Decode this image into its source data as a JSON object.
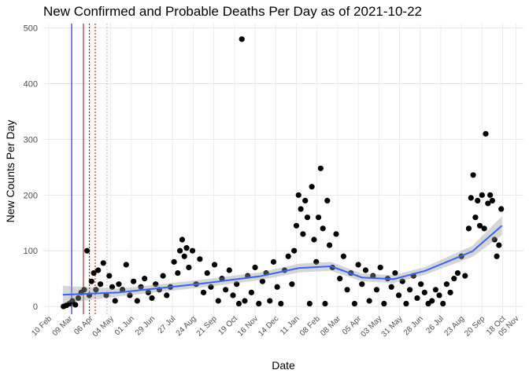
{
  "chart_data": {
    "type": "scatter",
    "title": "New Confirmed and Probable Deaths Per Day as of 2021-10-22",
    "x_label": "Date",
    "y_label": "New Counts Per Day",
    "color": "#000000",
    "grid": true,
    "xlim": [
      0,
      640
    ],
    "ylim": [
      -14,
      508
    ],
    "yticks": [
      0,
      100,
      200,
      300,
      400,
      500
    ],
    "xticks": [
      {
        "value": 0,
        "label": "10 Feb"
      },
      {
        "value": 28,
        "label": "09 Mar"
      },
      {
        "value": 56,
        "label": "06 Apr"
      },
      {
        "value": 84,
        "label": "04 May"
      },
      {
        "value": 112,
        "label": "01 Jun"
      },
      {
        "value": 140,
        "label": "29 Jun"
      },
      {
        "value": 168,
        "label": "27 Jul"
      },
      {
        "value": 196,
        "label": "24 Aug"
      },
      {
        "value": 224,
        "label": "21 Sep"
      },
      {
        "value": 252,
        "label": "19 Oct"
      },
      {
        "value": 280,
        "label": "16 Nov"
      },
      {
        "value": 308,
        "label": "14 Dec"
      },
      {
        "value": 336,
        "label": "11 Jan"
      },
      {
        "value": 364,
        "label": "08 Feb"
      },
      {
        "value": 392,
        "label": "08 Mar"
      },
      {
        "value": 420,
        "label": "05 Apr"
      },
      {
        "value": 448,
        "label": "03 May"
      },
      {
        "value": 476,
        "label": "31 May"
      },
      {
        "value": 504,
        "label": "28 Jun"
      },
      {
        "value": 532,
        "label": "26 Jul"
      },
      {
        "value": 560,
        "label": "23 Aug"
      },
      {
        "value": 588,
        "label": "20 Sep"
      },
      {
        "value": 616,
        "label": "18 Oct"
      },
      {
        "value": 634,
        "label": "05 Nov"
      }
    ],
    "vlines": [
      {
        "x": 31,
        "color": "#0000cc",
        "style": "solid"
      },
      {
        "x": 47,
        "color": "#aa0000",
        "style": "solid"
      },
      {
        "x": 55,
        "color": "#cc0000",
        "style": "dotted"
      },
      {
        "x": 63,
        "color": "#cc0000",
        "style": "dotted"
      },
      {
        "x": 79,
        "color": "#f4a0a0",
        "style": "dotted"
      }
    ],
    "x": [
      20,
      24,
      28,
      32,
      36,
      40,
      44,
      48,
      52,
      55,
      58,
      61,
      64,
      67,
      70,
      74,
      78,
      82,
      86,
      90,
      95,
      100,
      105,
      110,
      115,
      120,
      125,
      130,
      135,
      140,
      145,
      150,
      155,
      160,
      165,
      170,
      175,
      178,
      181,
      184,
      187,
      190,
      195,
      200,
      205,
      210,
      215,
      220,
      225,
      230,
      235,
      240,
      245,
      250,
      255,
      258,
      262,
      266,
      270,
      275,
      280,
      285,
      290,
      295,
      300,
      305,
      310,
      315,
      320,
      325,
      330,
      333,
      336,
      339,
      342,
      345,
      348,
      351,
      354,
      357,
      360,
      363,
      366,
      369,
      372,
      375,
      378,
      381,
      385,
      390,
      395,
      400,
      405,
      410,
      415,
      420,
      425,
      430,
      435,
      440,
      445,
      450,
      455,
      460,
      465,
      470,
      475,
      480,
      485,
      490,
      495,
      500,
      505,
      510,
      515,
      520,
      525,
      530,
      535,
      540,
      545,
      550,
      555,
      560,
      565,
      570,
      573,
      576,
      579,
      582,
      585,
      588,
      591,
      593,
      596,
      599,
      602,
      605,
      608,
      611,
      614
    ],
    "values": [
      0,
      2,
      5,
      10,
      3,
      15,
      25,
      30,
      100,
      20,
      45,
      60,
      30,
      65,
      40,
      78,
      20,
      55,
      35,
      10,
      40,
      30,
      75,
      20,
      45,
      10,
      35,
      50,
      25,
      15,
      40,
      30,
      55,
      20,
      35,
      80,
      60,
      100,
      120,
      90,
      105,
      70,
      100,
      40,
      85,
      25,
      60,
      35,
      75,
      10,
      50,
      30,
      65,
      20,
      40,
      5,
      480,
      10,
      55,
      25,
      70,
      5,
      45,
      60,
      10,
      80,
      35,
      5,
      65,
      90,
      40,
      100,
      145,
      200,
      175,
      130,
      190,
      160,
      5,
      215,
      120,
      80,
      160,
      248,
      140,
      5,
      190,
      110,
      70,
      130,
      50,
      90,
      30,
      60,
      5,
      75,
      40,
      65,
      10,
      55,
      30,
      70,
      5,
      50,
      35,
      60,
      20,
      45,
      5,
      30,
      55,
      15,
      40,
      25,
      5,
      10,
      30,
      20,
      5,
      40,
      25,
      50,
      60,
      90,
      55,
      140,
      195,
      236,
      160,
      190,
      145,
      200,
      140,
      310,
      185,
      200,
      190,
      120,
      90,
      110,
      175
    ],
    "smooth": {
      "color": "#3366ff",
      "x": [
        19,
        94,
        201,
        286,
        340,
        383,
        425,
        468,
        511,
        575,
        615
      ],
      "values": [
        21,
        25,
        40,
        54,
        69,
        72,
        52,
        49,
        64,
        99,
        145
      ],
      "lower": [
        5,
        18,
        33,
        47,
        61,
        64,
        45,
        42,
        57,
        89,
        128
      ],
      "upper": [
        37,
        32,
        47,
        61,
        77,
        80,
        59,
        56,
        71,
        109,
        162
      ]
    }
  }
}
